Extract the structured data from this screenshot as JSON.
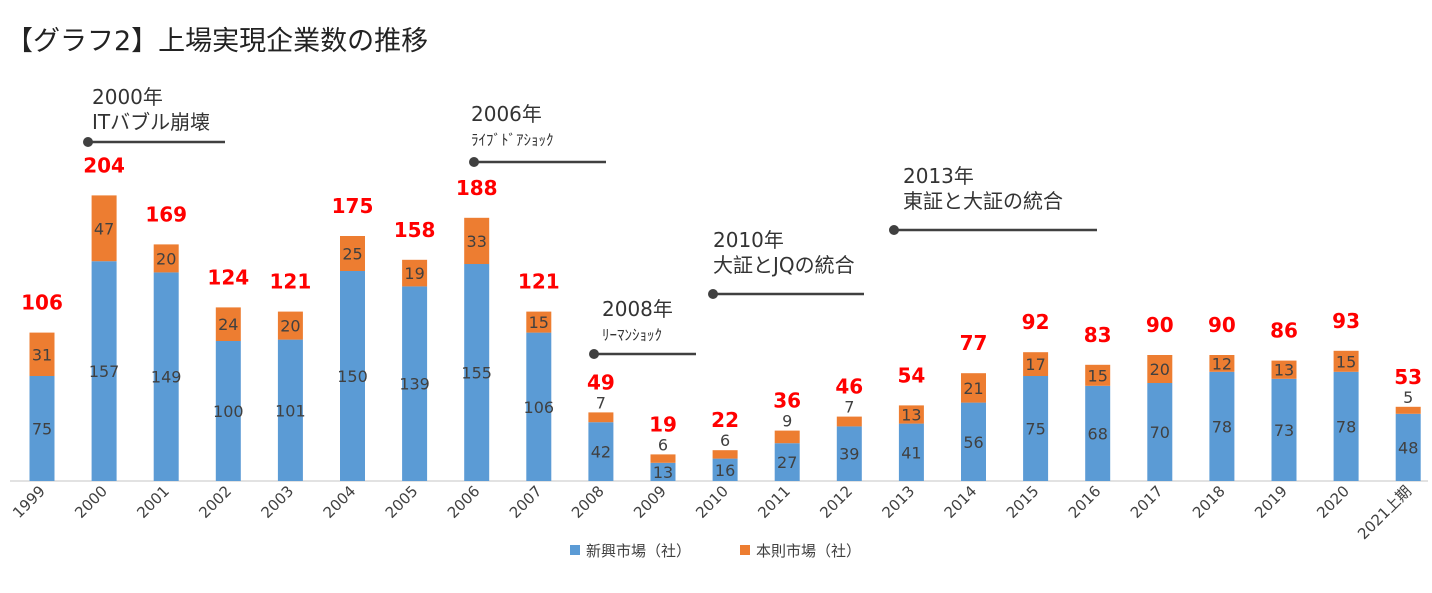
{
  "title": "【グラフ2】上場実現企業数の推移",
  "chart_data": {
    "type": "bar",
    "stacked": true,
    "categories": [
      "1999",
      "2000",
      "2001",
      "2002",
      "2003",
      "2004",
      "2005",
      "2006",
      "2007",
      "2008",
      "2009",
      "2010",
      "2011",
      "2012",
      "2013",
      "2014",
      "2015",
      "2016",
      "2017",
      "2018",
      "2019",
      "2020",
      "2021上期"
    ],
    "series": [
      {
        "name": "新興市場（社）",
        "color": "#5b9bd5",
        "values": [
          75,
          157,
          149,
          100,
          101,
          150,
          139,
          155,
          106,
          42,
          13,
          16,
          27,
          39,
          41,
          56,
          75,
          68,
          70,
          78,
          73,
          78,
          48
        ]
      },
      {
        "name": "本則市場（社）",
        "color": "#ed7d31",
        "values": [
          31,
          47,
          20,
          24,
          20,
          25,
          19,
          33,
          15,
          7,
          6,
          6,
          9,
          7,
          13,
          21,
          17,
          15,
          20,
          12,
          13,
          15,
          5
        ]
      }
    ],
    "totals": [
      106,
      204,
      169,
      124,
      121,
      175,
      158,
      188,
      121,
      49,
      19,
      22,
      36,
      46,
      54,
      77,
      92,
      83,
      90,
      90,
      86,
      93,
      53
    ],
    "total_color": "#ff0000",
    "grid": false,
    "legend_position": "bottom",
    "annotations": [
      {
        "year": "2000年",
        "event": "ITバブル崩壊"
      },
      {
        "year": "2006年",
        "event": "ﾗｲﾌﾞﾄﾞｱｼｮｯｸ"
      },
      {
        "year": "2008年",
        "event": "ﾘｰﾏﾝｼｮｯｸ"
      },
      {
        "year": "2010年",
        "event": "大証とJQの統合"
      },
      {
        "year": "2013年",
        "event": "東証と大証の統合"
      }
    ]
  }
}
